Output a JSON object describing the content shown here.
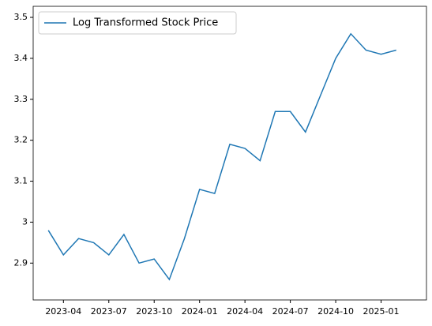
{
  "chart_data": {
    "type": "line",
    "x": [
      "2023-03",
      "2023-04",
      "2023-05",
      "2023-06",
      "2023-07",
      "2023-08",
      "2023-09",
      "2023-10",
      "2023-11",
      "2023-12",
      "2024-01",
      "2024-02",
      "2024-03",
      "2024-04",
      "2024-05",
      "2024-06",
      "2024-07",
      "2024-08",
      "2024-09",
      "2024-10",
      "2024-11",
      "2024-12",
      "2025-01",
      "2025-02"
    ],
    "series": [
      {
        "name": "Log Transformed Stock Price",
        "color": "#1f77b4",
        "values": [
          2.98,
          2.92,
          2.96,
          2.95,
          2.92,
          2.97,
          2.9,
          2.91,
          2.86,
          2.96,
          3.08,
          3.07,
          3.19,
          3.18,
          3.15,
          3.27,
          3.27,
          3.22,
          3.31,
          3.4,
          3.46,
          3.42,
          3.41,
          3.42
        ]
      }
    ],
    "xlim": [
      "2023-02",
      "2025-04"
    ],
    "xticks": [
      "2023-04",
      "2023-07",
      "2023-10",
      "2024-01",
      "2024-04",
      "2024-07",
      "2024-10",
      "2025-01"
    ],
    "ylim": [
      2.81,
      3.527
    ],
    "yticks": [
      2.9,
      3.0,
      3.1,
      3.2,
      3.3,
      3.4,
      3.5
    ],
    "legend": "upper left"
  }
}
